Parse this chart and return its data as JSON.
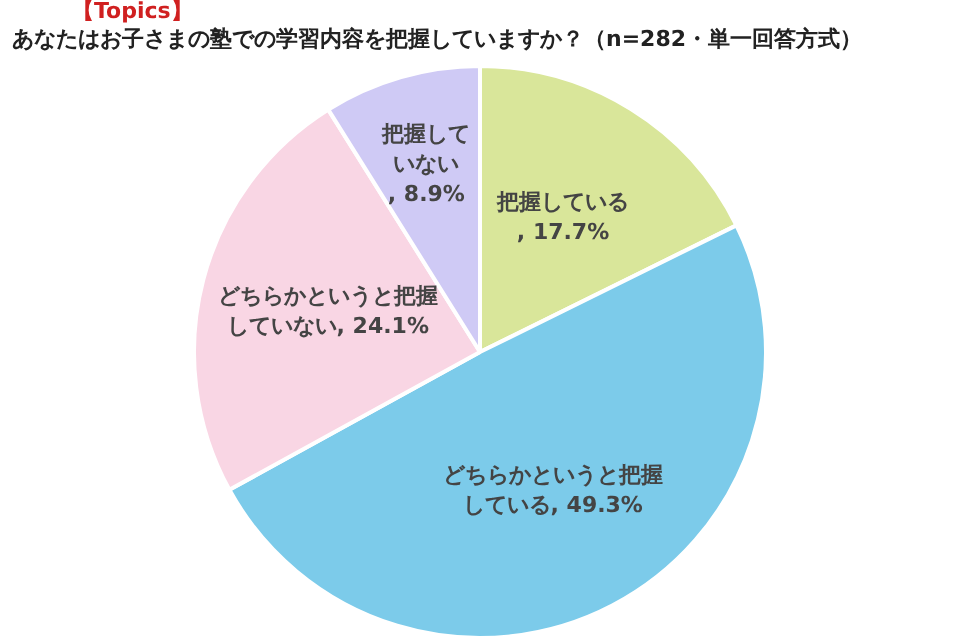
{
  "chart_data": {
    "type": "pie",
    "title": "あなたはお子さまの塾での学習内容を把握していますか？（n=282・単一回答方式）",
    "subtitle": "【Topics】",
    "categories": [
      "把握している",
      "どちらかというと把握している",
      "どちらかというと把握していない",
      "把握していない"
    ],
    "values": [
      17.7,
      49.3,
      24.1,
      8.9
    ],
    "colors": [
      "#d9e69a",
      "#7ccbea",
      "#f9d6e4",
      "#cfcaf5"
    ],
    "value_labels": [
      ", 17.7%",
      ", 49.3%",
      ", 24.1%",
      ", 8.9%"
    ],
    "legend": false
  }
}
